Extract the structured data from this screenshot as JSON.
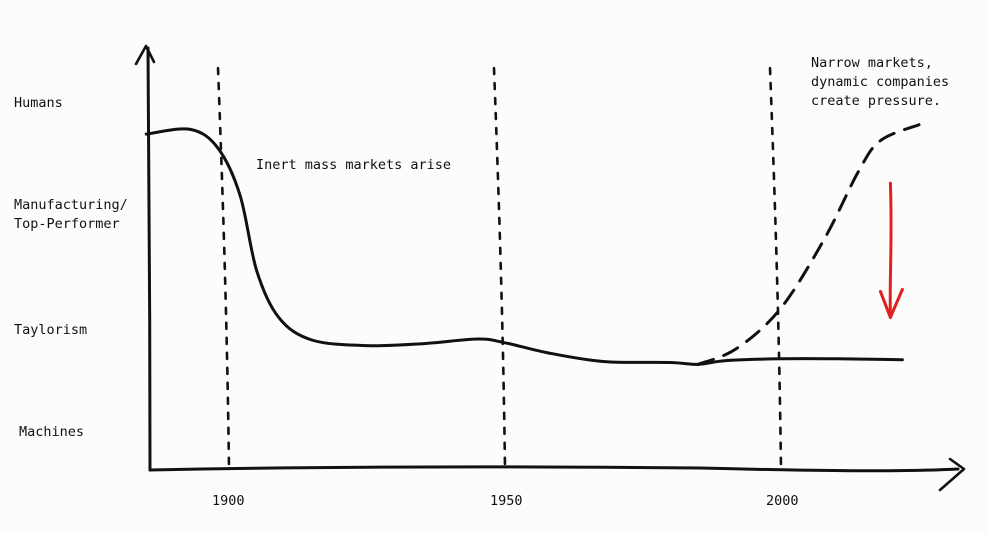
{
  "chart_data": {
    "type": "line",
    "title": "",
    "xlabel": "",
    "ylabel": "",
    "x_ticks": [
      "1900",
      "1950",
      "2000"
    ],
    "y_levels": [
      "Humans",
      "Manufacturing/\nTop-Performer",
      "Taylorism",
      "Machines"
    ],
    "annotations": {
      "mass_markets": "Inert mass markets arise",
      "narrow_markets": [
        "Narrow markets,",
        "dynamic companies",
        "create pressure."
      ]
    },
    "series": [
      {
        "style": "solid",
        "points": [
          [
            1885,
            3.35
          ],
          [
            1893,
            3.4
          ],
          [
            1898,
            3.2
          ],
          [
            1902,
            2.7
          ],
          [
            1905,
            1.9
          ],
          [
            1909,
            1.4
          ],
          [
            1915,
            1.16
          ],
          [
            1925,
            1.1
          ],
          [
            1935,
            1.12
          ],
          [
            1945,
            1.17
          ],
          [
            1950,
            1.13
          ],
          [
            1958,
            1.02
          ],
          [
            1968,
            0.93
          ],
          [
            1980,
            0.92
          ],
          [
            1985,
            0.9
          ],
          [
            1990,
            0.94
          ],
          [
            2000,
            0.96
          ],
          [
            2010,
            0.96
          ],
          [
            2022,
            0.95
          ]
        ]
      },
      {
        "style": "dashed",
        "points": [
          [
            1985,
            0.9
          ],
          [
            1992,
            1.07
          ],
          [
            2000,
            1.5
          ],
          [
            2008,
            2.25
          ],
          [
            2014,
            2.95
          ],
          [
            2018,
            3.28
          ],
          [
            2025,
            3.45
          ]
        ]
      }
    ],
    "pressure_arrow": {
      "color": "#e02020",
      "direction": "down",
      "x": 2020,
      "from_y": 2.85,
      "to_y": 1.4
    },
    "vertical_markers": [
      1900,
      1950,
      2000
    ]
  }
}
